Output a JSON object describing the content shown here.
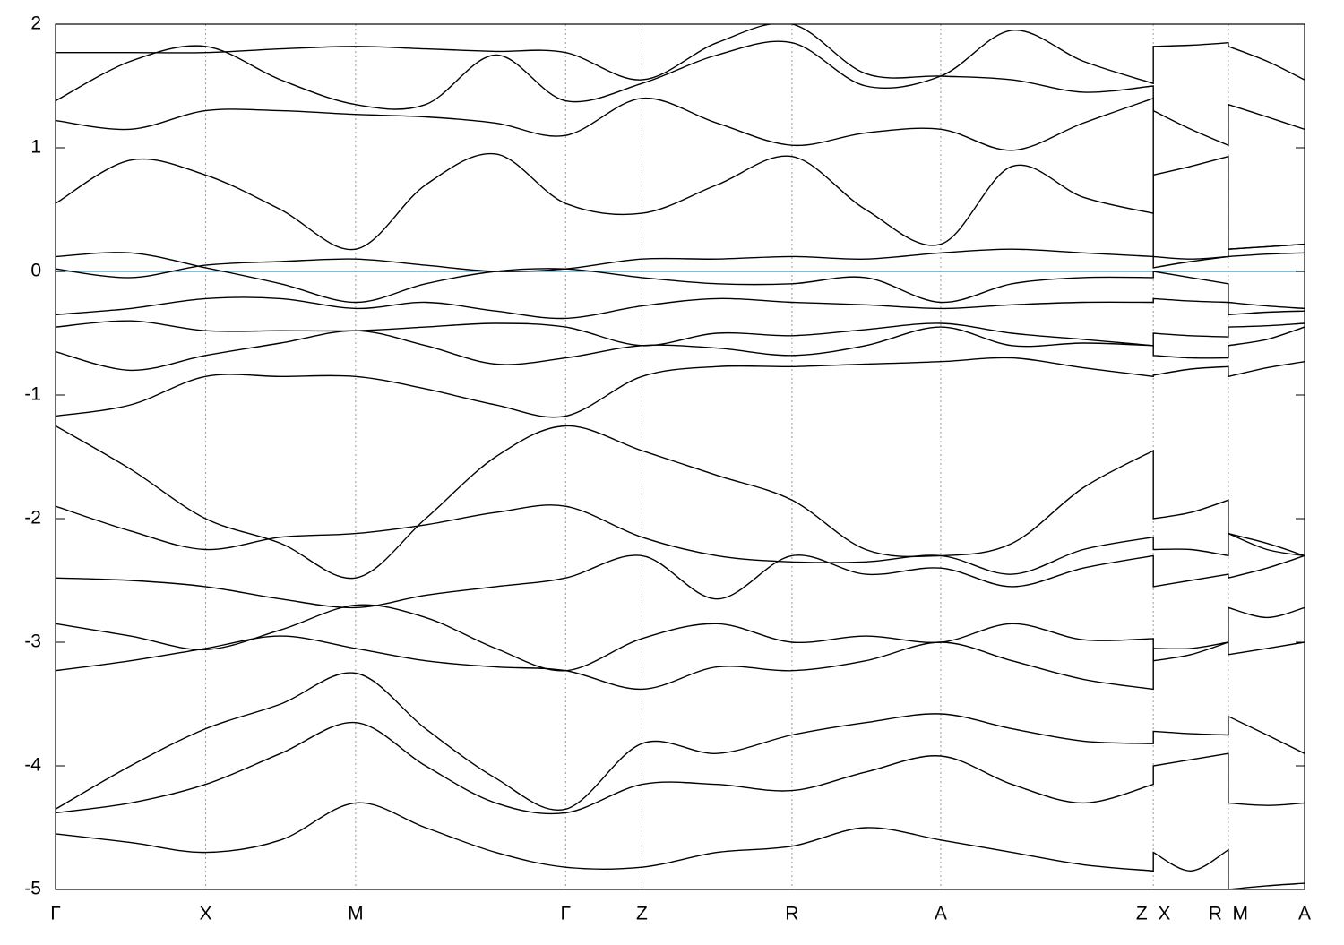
{
  "chart_data": {
    "type": "line",
    "x": [
      0,
      0.6,
      1.2,
      1.8,
      2.4,
      2.96,
      3.52,
      4.08,
      4.69,
      5.29,
      5.89,
      6.48,
      7.08,
      7.65,
      8.22,
      8.78,
      8.78,
      9.08,
      9.38,
      9.38,
      9.69,
      9.99
    ],
    "xlim": [
      0,
      9.99
    ],
    "xticks": [
      {
        "value": 0,
        "label": "Γ"
      },
      {
        "value": 1.2,
        "label": "X"
      },
      {
        "value": 2.4,
        "label": "M"
      },
      {
        "value": 4.08,
        "label": "Γ"
      },
      {
        "value": 4.69,
        "label": "Z"
      },
      {
        "value": 5.89,
        "label": "R"
      },
      {
        "value": 7.08,
        "label": "A"
      },
      {
        "value": 8.78,
        "label": "Z  X"
      },
      {
        "value": 9.38,
        "label": "R  M"
      },
      {
        "value": 9.99,
        "label": "A"
      }
    ],
    "ylim": [
      -5,
      2
    ],
    "yticks": [
      -5,
      -4,
      -3,
      -2,
      -1,
      0,
      1,
      2
    ],
    "grid": "x",
    "line_color": "#000000",
    "hline": {
      "y": 0,
      "color": "#5ba8c9"
    },
    "series": [
      {
        "values": [
          -1.17,
          -1.08,
          -0.85,
          -0.85,
          -0.85,
          -0.95,
          -1.08,
          -1.17,
          -0.85,
          -0.77,
          -0.77,
          -0.75,
          -0.73,
          -0.7,
          -0.78,
          -0.85,
          -0.84,
          -0.79,
          -0.77,
          -0.85,
          -0.78,
          -0.73
        ]
      },
      {
        "values": [
          -1.25,
          -1.6,
          -2.0,
          -2.2,
          -2.48,
          -2.0,
          -1.5,
          -1.25,
          -1.45,
          -1.65,
          -1.85,
          -2.25,
          -2.3,
          -2.2,
          -1.75,
          -1.45,
          -2.0,
          -1.95,
          -1.85,
          -2.12,
          -2.2,
          -2.3
        ]
      },
      {
        "values": [
          -2.48,
          -2.5,
          -2.55,
          -2.65,
          -2.72,
          -2.62,
          -2.55,
          -2.48,
          -2.3,
          -2.65,
          -2.3,
          -2.45,
          -2.4,
          -2.55,
          -2.4,
          -2.3,
          -2.55,
          -2.5,
          -2.45,
          -2.48,
          -2.4,
          -2.3
        ]
      },
      {
        "values": [
          -3.23,
          -3.15,
          -3.05,
          -2.95,
          -3.05,
          -3.15,
          -3.2,
          -3.23,
          -3.38,
          -3.2,
          -3.23,
          -3.15,
          -3.0,
          -3.15,
          -3.3,
          -3.38,
          -3.05,
          -3.05,
          -3.0,
          -3.1,
          -3.05,
          -3.0
        ]
      },
      {
        "values": [
          -4.35,
          -4.0,
          -3.7,
          -3.5,
          -3.25,
          -3.7,
          -4.1,
          -4.35,
          -3.82,
          -3.9,
          -3.75,
          -3.65,
          -3.58,
          -3.7,
          -3.8,
          -3.82,
          -3.72,
          -3.74,
          -3.75,
          -3.6,
          -3.75,
          -3.9
        ]
      },
      {
        "values": [
          -4.38,
          -4.3,
          -4.15,
          -3.9,
          -3.65,
          -4.0,
          -4.3,
          -4.38,
          -4.15,
          -4.15,
          -4.2,
          -4.05,
          -3.92,
          -4.15,
          -4.3,
          -4.15,
          -4.0,
          -3.95,
          -3.9,
          -4.3,
          -4.32,
          -4.3
        ]
      },
      {
        "values": [
          -4.55,
          -4.62,
          -4.7,
          -4.6,
          -4.3,
          -4.5,
          -4.7,
          -4.82,
          -4.82,
          -4.7,
          -4.65,
          -4.5,
          -4.6,
          -4.7,
          -4.8,
          -4.85,
          -4.7,
          -4.85,
          -4.68,
          -5.0,
          -4.97,
          -4.95
        ]
      },
      {
        "values": [
          -1.9,
          -2.1,
          -2.25,
          -2.15,
          -2.12,
          -2.05,
          -1.95,
          -1.9,
          -2.15,
          -2.3,
          -2.35,
          -2.35,
          -2.3,
          -2.45,
          -2.25,
          -2.15,
          -2.25,
          -2.25,
          -2.3,
          -2.12,
          -2.25,
          -2.3
        ]
      },
      {
        "values": [
          -2.85,
          -2.95,
          -3.06,
          -2.9,
          -2.7,
          -2.8,
          -3.05,
          -3.23,
          -2.97,
          -2.85,
          -3.0,
          -2.95,
          -3.0,
          -2.85,
          -2.98,
          -2.97,
          -3.15,
          -3.1,
          -3.0,
          -2.72,
          -2.8,
          -2.72
        ]
      },
      {
        "values": [
          0.02,
          -0.05,
          0.05,
          0.08,
          0.1,
          0.05,
          0.0,
          0.02,
          0.1,
          0.1,
          0.12,
          0.1,
          0.15,
          0.18,
          0.15,
          0.12,
          0.03,
          0.08,
          0.12,
          0.18,
          0.2,
          0.22
        ]
      },
      {
        "values": [
          0.12,
          0.15,
          0.03,
          -0.1,
          -0.25,
          -0.1,
          0.0,
          0.02,
          -0.05,
          -0.1,
          -0.1,
          -0.05,
          -0.25,
          -0.1,
          -0.05,
          -0.05,
          0.0,
          -0.05,
          -0.1,
          -0.25,
          -0.28,
          -0.3
        ]
      },
      {
        "values": [
          -0.35,
          -0.3,
          -0.22,
          -0.22,
          -0.3,
          -0.25,
          -0.32,
          -0.38,
          -0.28,
          -0.22,
          -0.25,
          -0.27,
          -0.3,
          -0.27,
          -0.25,
          -0.25,
          -0.22,
          -0.24,
          -0.25,
          -0.35,
          -0.33,
          -0.32
        ]
      },
      {
        "values": [
          -0.45,
          -0.4,
          -0.48,
          -0.48,
          -0.48,
          -0.45,
          -0.42,
          -0.45,
          -0.6,
          -0.5,
          -0.52,
          -0.47,
          -0.42,
          -0.5,
          -0.55,
          -0.6,
          -0.5,
          -0.52,
          -0.53,
          -0.45,
          -0.44,
          -0.42
        ]
      },
      {
        "values": [
          -0.65,
          -0.8,
          -0.68,
          -0.58,
          -0.48,
          -0.6,
          -0.75,
          -0.7,
          -0.6,
          -0.62,
          -0.68,
          -0.6,
          -0.45,
          -0.6,
          -0.58,
          -0.6,
          -0.68,
          -0.7,
          -0.7,
          -0.6,
          -0.55,
          -0.45
        ]
      },
      {
        "values": [
          0.55,
          0.9,
          0.78,
          0.5,
          0.18,
          0.7,
          0.95,
          0.55,
          0.47,
          0.7,
          0.93,
          0.5,
          0.22,
          0.85,
          0.6,
          0.47,
          0.78,
          0.85,
          0.93,
          0.18,
          0.2,
          0.22
        ]
      },
      {
        "values": [
          1.22,
          1.15,
          1.3,
          1.3,
          1.27,
          1.25,
          1.2,
          1.1,
          1.4,
          1.2,
          1.02,
          1.12,
          1.15,
          0.98,
          1.2,
          1.4,
          1.3,
          1.15,
          1.02,
          1.35,
          1.25,
          1.15
        ]
      },
      {
        "values": [
          1.38,
          1.7,
          1.82,
          1.55,
          1.35,
          1.35,
          1.75,
          1.38,
          1.52,
          1.75,
          1.85,
          1.5,
          1.58,
          1.95,
          1.7,
          1.52,
          1.82,
          1.83,
          1.85,
          1.82,
          1.7,
          1.55
        ]
      },
      {
        "values": [
          1.77,
          1.77,
          1.77,
          1.8,
          1.82,
          1.8,
          1.78,
          1.77,
          1.55,
          1.85,
          2.0,
          1.6,
          1.58,
          1.55,
          1.45,
          1.5,
          0.12,
          0.1,
          0.12,
          0.12,
          0.14,
          0.15
        ]
      }
    ]
  }
}
